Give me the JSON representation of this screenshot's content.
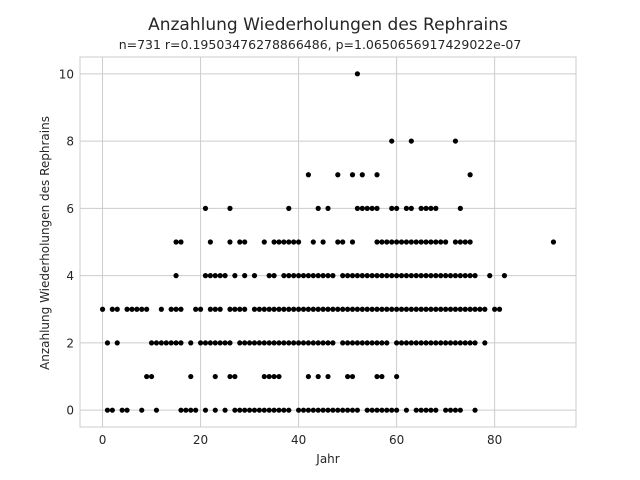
{
  "chart_data": {
    "type": "scatter",
    "title": "Anzahlung Wiederholungen des Rephrains",
    "subtitle": "n=731 r=0.19503476278866486, p=1.0650656917429022e-07",
    "xlabel": "Jahr",
    "ylabel": "Anzahlung Wiederholungen des Rephrains",
    "xlim": [
      -4.6,
      96.6
    ],
    "ylim": [
      -0.5,
      10.5
    ],
    "x_ticks": [
      0,
      20,
      40,
      60,
      80
    ],
    "y_ticks": [
      0,
      2,
      4,
      6,
      8,
      10
    ],
    "x_tick_labels": [
      "0",
      "20",
      "40",
      "60",
      "80"
    ],
    "y_tick_labels": [
      "0",
      "2",
      "4",
      "6",
      "8",
      "10"
    ],
    "grid": true,
    "marker_color": "#000000",
    "points": [
      {
        "y": 10,
        "x": [
          52
        ]
      },
      {
        "y": 8,
        "x": [
          59,
          63,
          72
        ]
      },
      {
        "y": 7,
        "x": [
          42,
          48,
          51,
          53,
          56,
          75
        ]
      },
      {
        "y": 6,
        "x": [
          21,
          26,
          38,
          44,
          46,
          52,
          53,
          54,
          55,
          56,
          59,
          60,
          62,
          63,
          65,
          66,
          67,
          68,
          73
        ]
      },
      {
        "y": 5,
        "x": [
          15,
          16,
          22,
          26,
          28,
          29,
          33,
          35,
          36,
          37,
          38,
          39,
          40,
          43,
          45,
          48,
          49,
          51,
          56,
          57,
          58,
          59,
          60,
          61,
          62,
          63,
          64,
          65,
          66,
          67,
          68,
          69,
          70,
          72,
          73,
          74,
          75,
          92
        ]
      },
      {
        "y": 4,
        "x": [
          15,
          21,
          22,
          23,
          24,
          25,
          27,
          29,
          31,
          34,
          35,
          37,
          38,
          39,
          40,
          41,
          42,
          43,
          44,
          45,
          46,
          47,
          49,
          50,
          51,
          52,
          53,
          54,
          55,
          56,
          57,
          58,
          59,
          60,
          61,
          62,
          63,
          64,
          65,
          66,
          67,
          68,
          69,
          70,
          71,
          72,
          73,
          74,
          75,
          76,
          79,
          82
        ]
      },
      {
        "y": 3,
        "x": [
          0,
          2,
          3,
          5,
          6,
          7,
          8,
          9,
          12,
          14,
          15,
          16,
          19,
          20,
          22,
          23,
          24,
          26,
          27,
          28,
          29,
          31,
          32,
          33,
          34,
          35,
          36,
          37,
          38,
          39,
          40,
          41,
          42,
          43,
          44,
          45,
          46,
          47,
          48,
          49,
          50,
          51,
          52,
          53,
          54,
          55,
          56,
          57,
          58,
          59,
          60,
          61,
          62,
          63,
          64,
          65,
          66,
          67,
          68,
          69,
          70,
          71,
          72,
          73,
          74,
          75,
          76,
          77,
          78,
          80,
          81
        ]
      },
      {
        "y": 2,
        "x": [
          1,
          3,
          10,
          11,
          12,
          13,
          14,
          15,
          16,
          18,
          20,
          21,
          22,
          23,
          24,
          25,
          26,
          28,
          29,
          30,
          31,
          32,
          33,
          34,
          35,
          36,
          37,
          38,
          39,
          40,
          41,
          42,
          43,
          44,
          45,
          46,
          47,
          49,
          50,
          51,
          52,
          53,
          54,
          55,
          56,
          57,
          58,
          60,
          61,
          62,
          63,
          64,
          65,
          66,
          67,
          68,
          69,
          70,
          71,
          72,
          73,
          74,
          75,
          76,
          78
        ]
      },
      {
        "y": 1,
        "x": [
          9,
          10,
          18,
          23,
          26,
          27,
          33,
          34,
          35,
          36,
          42,
          44,
          46,
          50,
          51,
          56,
          57,
          60
        ]
      },
      {
        "y": 0,
        "x": [
          1,
          2,
          4,
          5,
          8,
          11,
          16,
          17,
          18,
          19,
          21,
          23,
          25,
          27,
          28,
          29,
          30,
          31,
          32,
          33,
          34,
          35,
          36,
          37,
          38,
          40,
          41,
          42,
          43,
          44,
          45,
          46,
          47,
          48,
          49,
          50,
          51,
          52,
          54,
          55,
          56,
          57,
          58,
          59,
          60,
          62,
          64,
          65,
          66,
          67,
          68,
          70,
          71,
          72,
          73,
          76
        ]
      }
    ]
  }
}
